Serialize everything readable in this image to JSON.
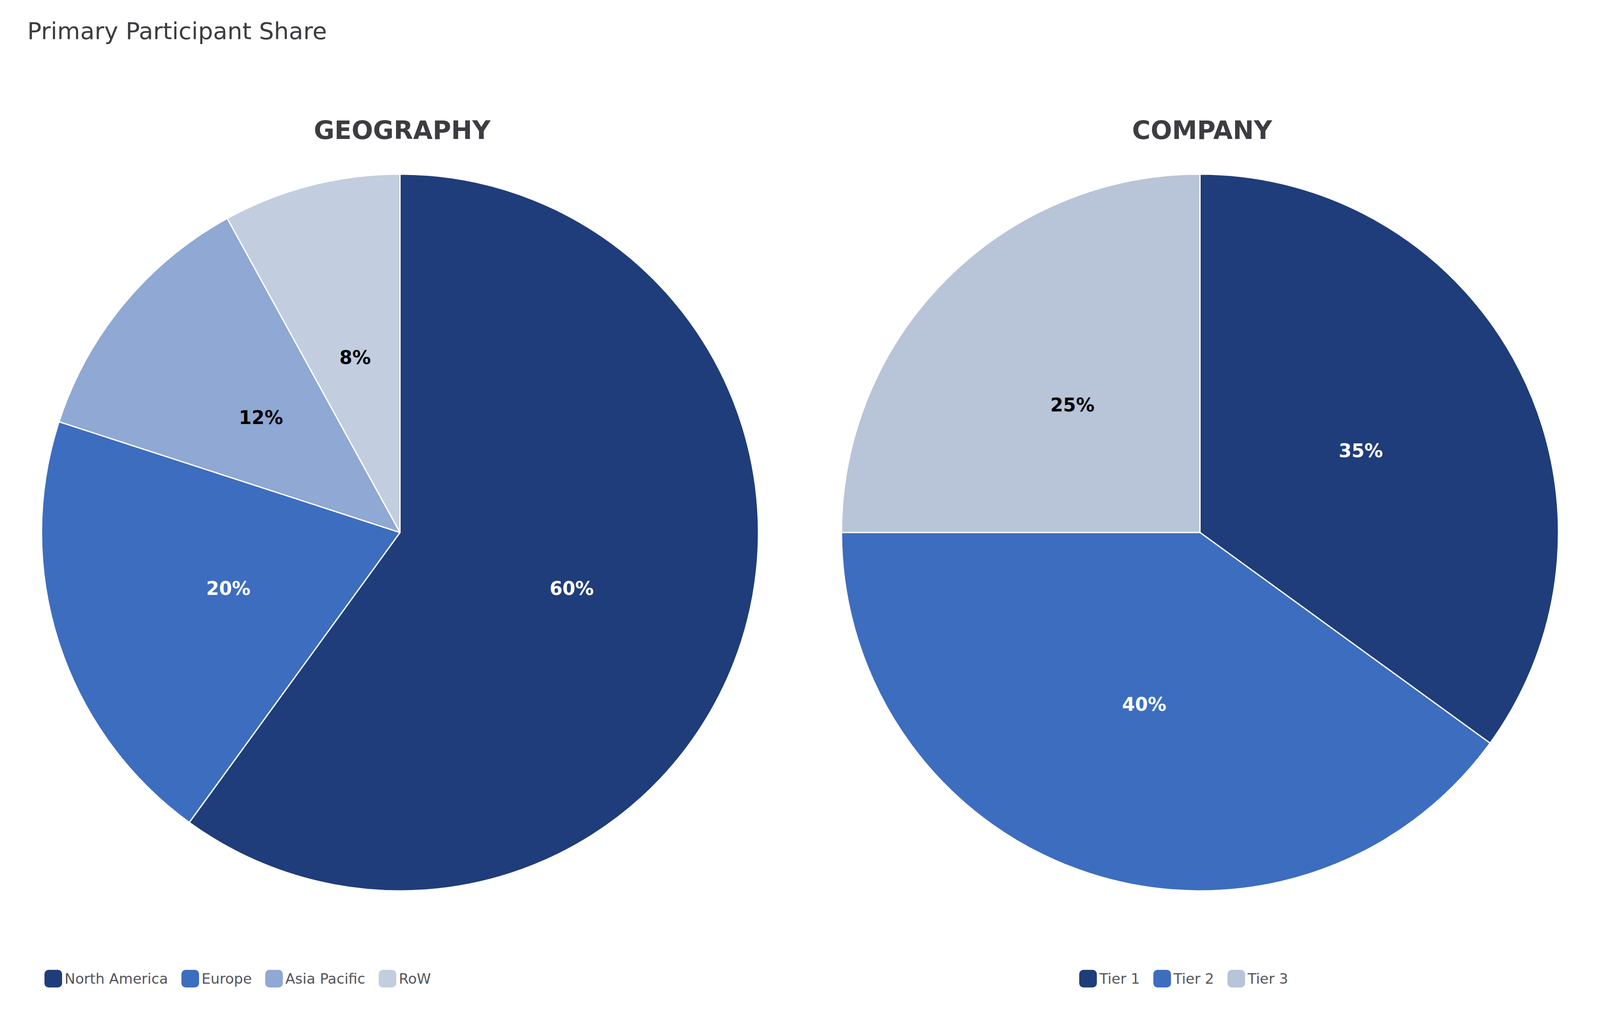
{
  "title": "Primary Participant Share",
  "chart_data": [
    {
      "type": "pie",
      "title": "GEOGRAPHY",
      "categories": [
        "North America",
        "Europe",
        "Asia Pacific",
        "RoW"
      ],
      "values": [
        60,
        20,
        12,
        8
      ],
      "value_labels": [
        "60%",
        "20%",
        "12%",
        "8%"
      ],
      "colors": [
        "#1f3d7a",
        "#3d6dbf",
        "#8fa8d4",
        "#c2cedf"
      ],
      "data_labels": true,
      "legend": "bottom-left"
    },
    {
      "type": "pie",
      "title": "COMPANY",
      "categories": [
        "Tier 1",
        "Tier 2",
        "Tier 3"
      ],
      "values": [
        35,
        40,
        25
      ],
      "value_labels": [
        "35%",
        "40%",
        "25%"
      ],
      "colors": [
        "#1f3d7a",
        "#3d6dbf",
        "#b8c4d8"
      ],
      "data_labels": true,
      "legend": "bottom"
    }
  ]
}
